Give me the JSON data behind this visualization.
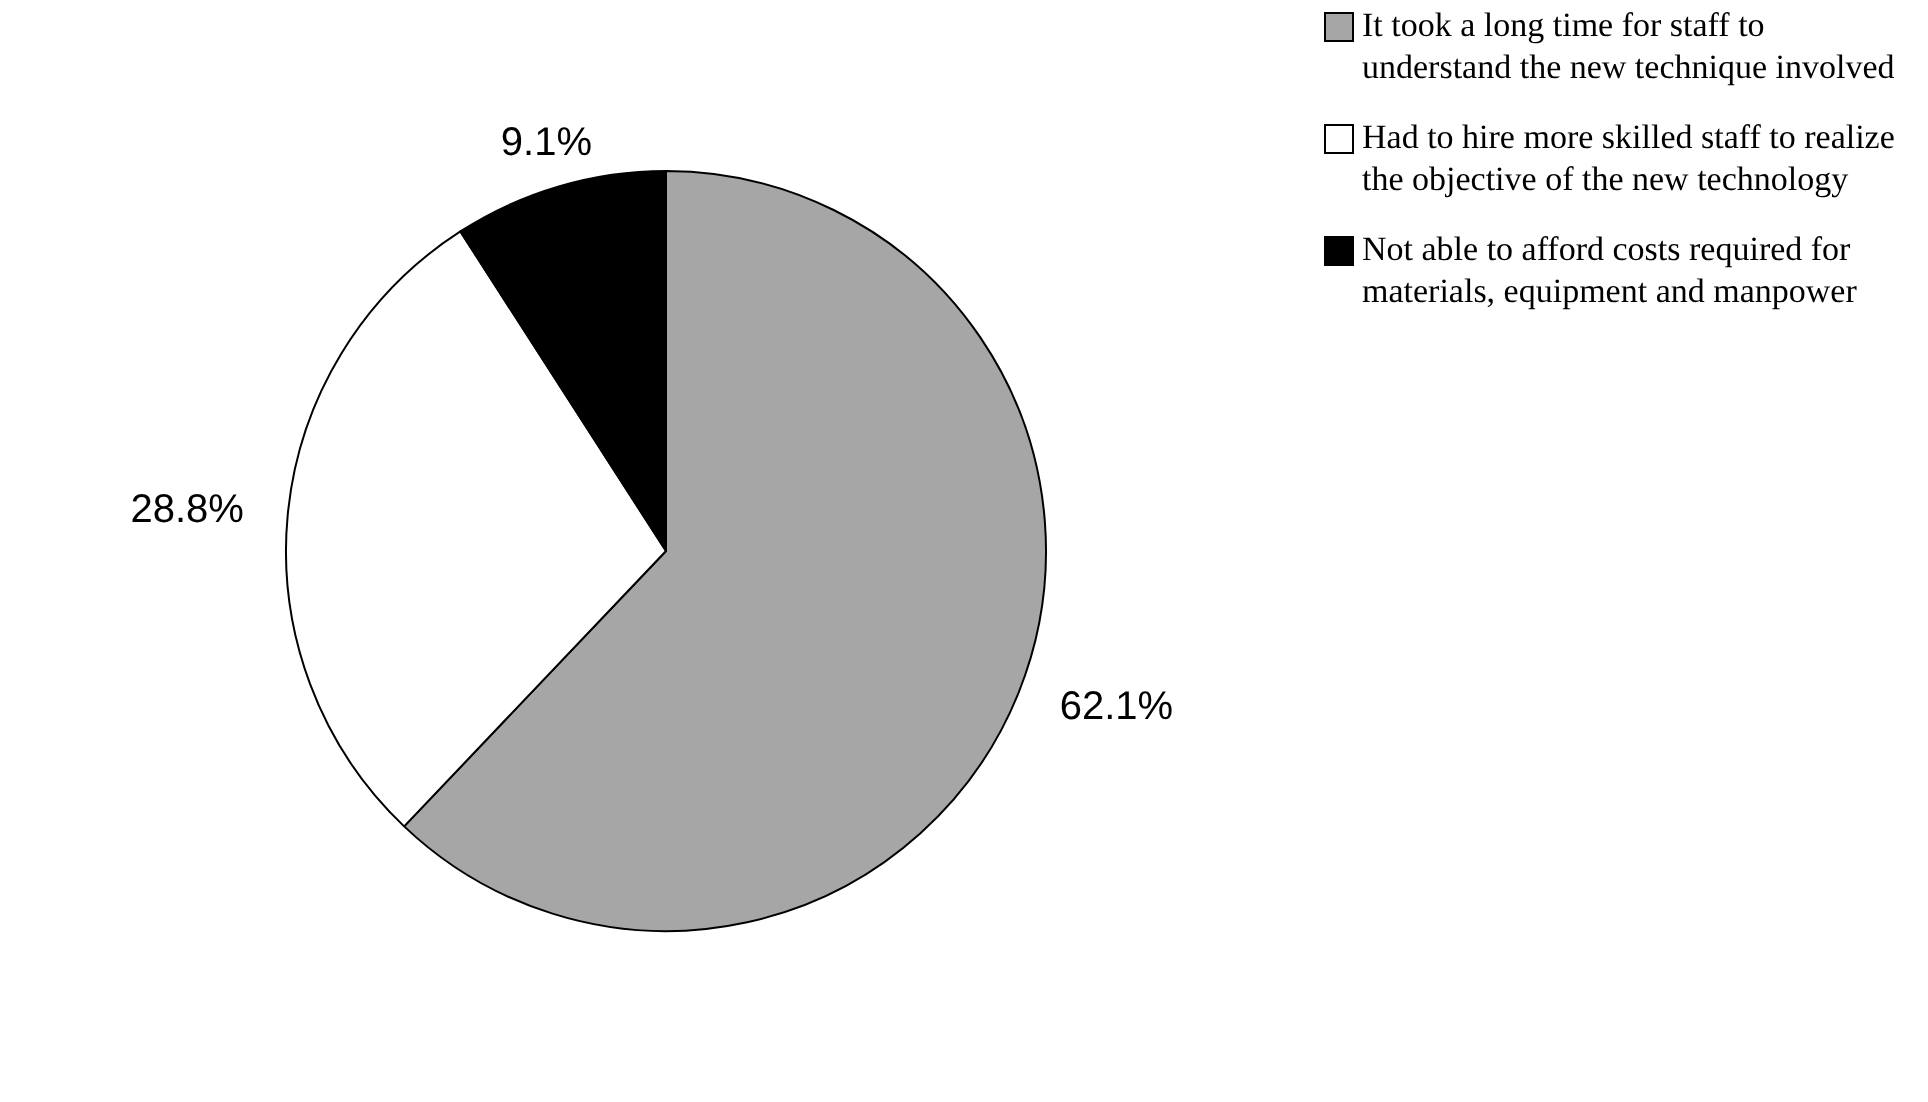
{
  "chart_data": {
    "type": "pie",
    "categories": [
      "It took a long time for staff to understand the new technique involved",
      "Had to hire more skilled staff to realize the objective of the new technology",
      "Not able to afford costs required for materials, equipment and manpower"
    ],
    "values": [
      62.1,
      28.8,
      9.1
    ],
    "value_labels": [
      "62.1%",
      "28.8%",
      "9.1%"
    ],
    "colors": [
      "#a6a6a6",
      "#ffffff",
      "#000000"
    ],
    "legend": "top right"
  }
}
